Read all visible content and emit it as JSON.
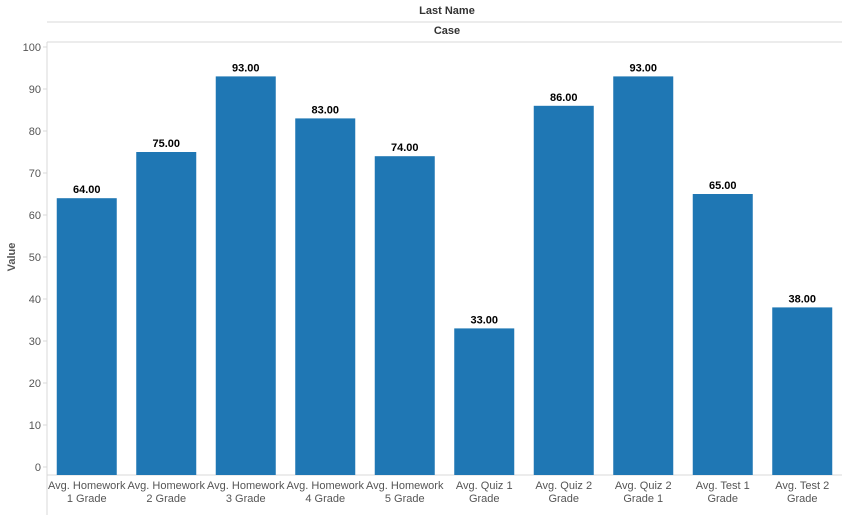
{
  "chart_data": {
    "type": "bar",
    "header_top": "Last Name",
    "header_sub": "Case",
    "ylabel": "Value",
    "ylim": [
      0,
      100
    ],
    "yticks": [
      0,
      10,
      20,
      30,
      40,
      50,
      60,
      70,
      80,
      90,
      100
    ],
    "categories": [
      [
        "Avg. Homework",
        "1 Grade"
      ],
      [
        "Avg. Homework",
        "2 Grade"
      ],
      [
        "Avg. Homework",
        "3 Grade"
      ],
      [
        "Avg. Homework",
        "4 Grade"
      ],
      [
        "Avg. Homework",
        "5 Grade"
      ],
      [
        "Avg. Quiz 1",
        "Grade"
      ],
      [
        "Avg. Quiz 2",
        "Grade"
      ],
      [
        "Avg. Quiz 2",
        "Grade 1"
      ],
      [
        "Avg. Test 1",
        "Grade"
      ],
      [
        "Avg. Test 2",
        "Grade"
      ]
    ],
    "values": [
      64,
      75,
      93,
      83,
      74,
      33,
      86,
      93,
      65,
      38
    ],
    "data_labels": [
      "64.00",
      "75.00",
      "93.00",
      "83.00",
      "74.00",
      "33.00",
      "86.00",
      "93.00",
      "65.00",
      "38.00"
    ],
    "bar_color": "#1f77b4",
    "grid": false,
    "legend": "none"
  }
}
